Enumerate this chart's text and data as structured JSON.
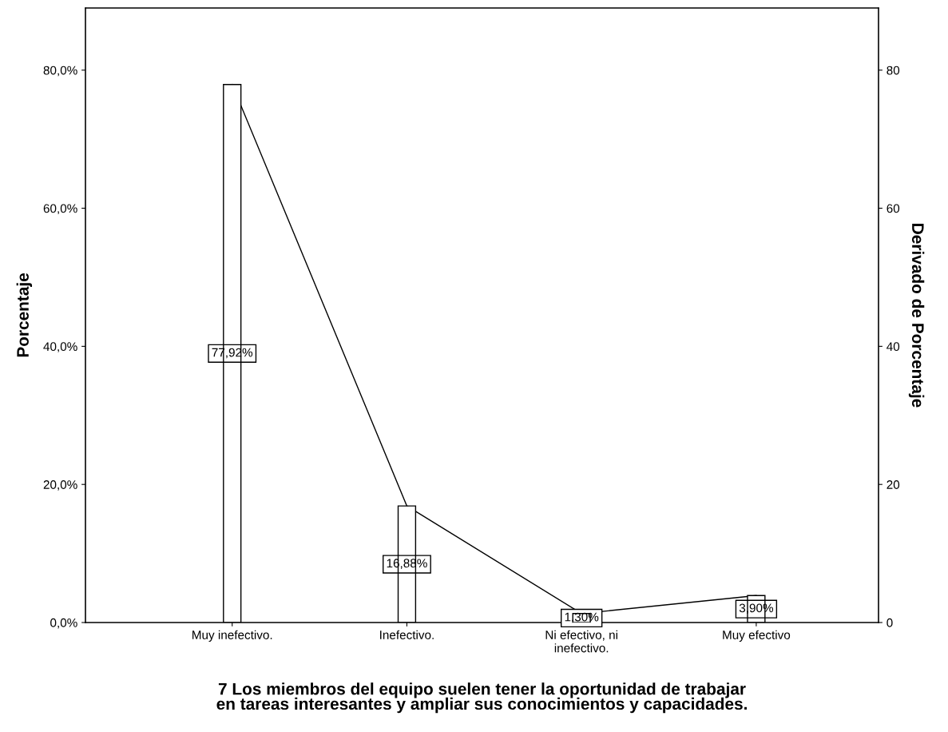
{
  "chart_data": {
    "type": "bar",
    "xlabel": "7 Los miembros del equipo suelen tener la oportunidad de trabajar\nen tareas interesantes y ampliar sus conocimientos y capacidades.",
    "ylabel": "Porcentaje",
    "y2label": "Derivado de Porcentaje",
    "categories": [
      "Muy inefectivo.",
      "Inefectivo.",
      "Ni efectivo, ni\ninefectivo.",
      "Muy efectivo"
    ],
    "series": [
      {
        "color": "#ffffff",
        "values": [
          77.92,
          16.88,
          1.3,
          3.9
        ],
        "value_labels": [
          "77,92%",
          "16,88%",
          "1,30%",
          "3,90%"
        ]
      },
      {
        "type": "line",
        "axis": "y2",
        "color": "#000000",
        "values": [
          77.92,
          16.88,
          1.3,
          3.9
        ]
      }
    ],
    "ylim": [
      0,
      89
    ],
    "yticks": [
      {
        "value": 0,
        "label": "0,0%"
      },
      {
        "value": 20,
        "label": "20,0%"
      },
      {
        "value": 40,
        "label": "40,0%"
      },
      {
        "value": 60,
        "label": "60,0%"
      },
      {
        "value": 80,
        "label": "80,0%"
      }
    ],
    "y2lim": [
      0,
      89
    ],
    "y2ticks": [
      0,
      20,
      40,
      60,
      80
    ],
    "grid": false,
    "legend": false,
    "marker": "none",
    "line_style": "solid"
  }
}
